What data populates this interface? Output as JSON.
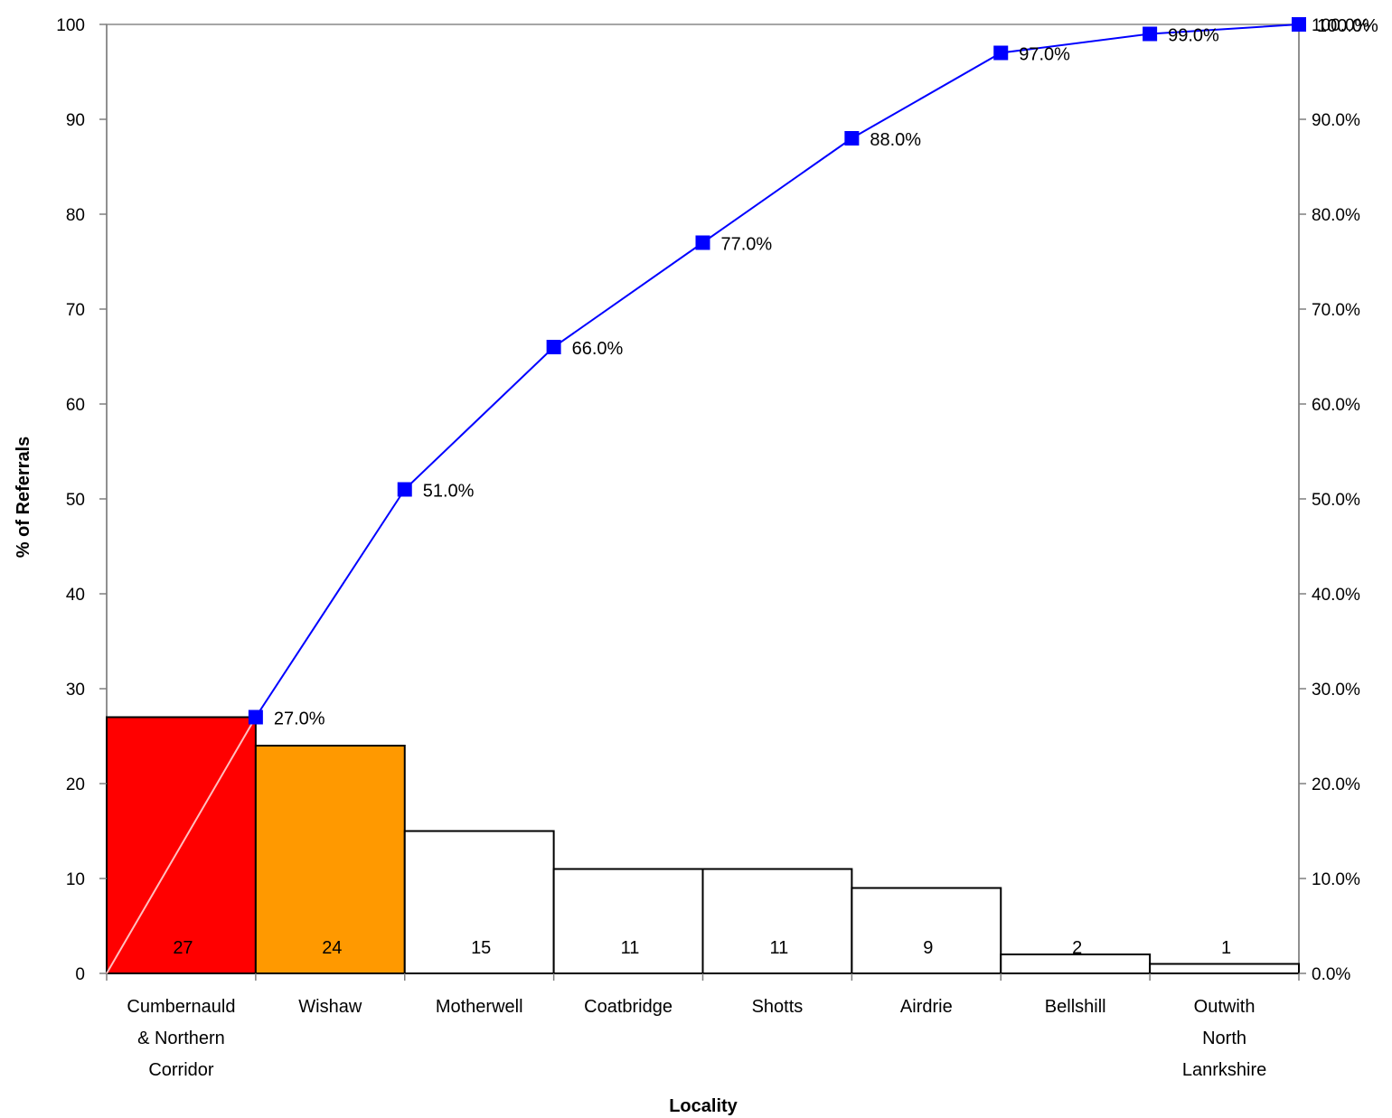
{
  "chart_data": {
    "type": "bar",
    "title": "",
    "xlabel": "Locality",
    "ylabel": "% of Referrals",
    "ylim": [
      0,
      100
    ],
    "y_ticks": [
      "0",
      "10",
      "20",
      "30",
      "40",
      "50",
      "60",
      "70",
      "80",
      "90",
      "100"
    ],
    "y2lim": [
      0,
      100
    ],
    "y2_ticks": [
      "0.0%",
      "10.0%",
      "20.0%",
      "30.0%",
      "40.0%",
      "50.0%",
      "60.0%",
      "70.0%",
      "80.0%",
      "90.0%",
      "100.0%"
    ],
    "grid": false,
    "legend": "none",
    "categories": [
      [
        "Cumbernauld",
        "& Northern",
        "Corridor"
      ],
      [
        "Wishaw"
      ],
      [
        "Motherwell"
      ],
      [
        "Coatbridge"
      ],
      [
        "Shotts"
      ],
      [
        "Airdrie"
      ],
      [
        "Bellshill"
      ],
      [
        "Outwith",
        "North",
        "Lanrkshire"
      ]
    ],
    "bars": {
      "values": [
        27,
        24,
        15,
        11,
        11,
        9,
        2,
        1
      ],
      "labels": [
        "27",
        "24",
        "15",
        "11",
        "11",
        "9",
        "2",
        "1"
      ],
      "colors": [
        "#ff0000",
        "#ff9900",
        "#ffffff",
        "#ffffff",
        "#ffffff",
        "#ffffff",
        "#ffffff",
        "#ffffff"
      ]
    },
    "cumulative": {
      "type": "line",
      "axis": "secondary",
      "values": [
        27,
        51,
        66,
        77,
        88,
        97,
        99,
        100
      ],
      "labels": [
        "27.0%",
        "51.0%",
        "66.0%",
        "77.0%",
        "88.0%",
        "97.0%",
        "99.0%",
        "100.0%"
      ],
      "color": "#0000ff"
    },
    "diagonal_line_color": "#ffbfbf"
  }
}
